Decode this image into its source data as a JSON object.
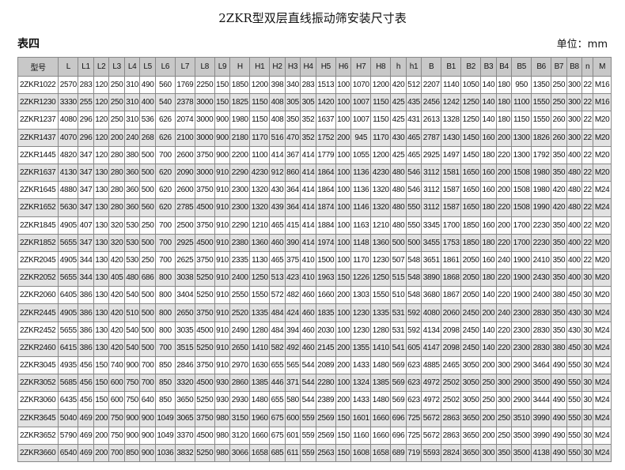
{
  "header": {
    "title": "2ZKR型双层直线振动筛安装尺寸表",
    "label": "表四",
    "unit": "单位：mm"
  },
  "table": {
    "columns": [
      "型号",
      "L",
      "L1",
      "L2",
      "L3",
      "L4",
      "L5",
      "L6",
      "L7",
      "L8",
      "L9",
      "H",
      "H1",
      "H2",
      "H3",
      "H4",
      "H5",
      "H6",
      "H7",
      "H8",
      "h",
      "h1",
      "B",
      "B1",
      "B2",
      "B3",
      "B4",
      "B5",
      "B6",
      "B7",
      "B8",
      "n",
      "M"
    ],
    "rows": [
      [
        "2ZKR1022",
        "2570",
        "283",
        "120",
        "250",
        "310",
        "490",
        "560",
        "1769",
        "2250",
        "150",
        "1850",
        "1200",
        "398",
        "340",
        "283",
        "1513",
        "100",
        "1070",
        "1200",
        "420",
        "512",
        "2207",
        "1140",
        "1050",
        "140",
        "180",
        "950",
        "1350",
        "250",
        "300",
        "22",
        "M16"
      ],
      [
        "2ZKR1230",
        "3330",
        "255",
        "120",
        "250",
        "310",
        "400",
        "540",
        "2378",
        "3000",
        "150",
        "1825",
        "1150",
        "408",
        "305",
        "305",
        "1420",
        "100",
        "1007",
        "1150",
        "425",
        "435",
        "2456",
        "1242",
        "1250",
        "140",
        "180",
        "1100",
        "1550",
        "250",
        "300",
        "22",
        "M16"
      ],
      [
        "2ZKR1237",
        "4080",
        "296",
        "120",
        "250",
        "310",
        "536",
        "626",
        "2074",
        "3000",
        "900",
        "1980",
        "1150",
        "408",
        "350",
        "352",
        "1637",
        "100",
        "1007",
        "1150",
        "425",
        "431",
        "2613",
        "1328",
        "1250",
        "140",
        "180",
        "1150",
        "1550",
        "260",
        "300",
        "22",
        "M20"
      ],
      [
        "2ZKR1437",
        "4070",
        "296",
        "120",
        "200",
        "240",
        "268",
        "626",
        "2100",
        "3000",
        "900",
        "2180",
        "1170",
        "516",
        "470",
        "352",
        "1752",
        "200",
        "945",
        "1170",
        "430",
        "465",
        "2787",
        "1430",
        "1450",
        "160",
        "200",
        "1300",
        "1826",
        "260",
        "300",
        "22",
        "M20"
      ],
      [
        "2ZKR1445",
        "4820",
        "347",
        "120",
        "280",
        "380",
        "500",
        "700",
        "2600",
        "3750",
        "900",
        "2200",
        "1100",
        "414",
        "367",
        "414",
        "1779",
        "100",
        "1055",
        "1200",
        "425",
        "465",
        "2925",
        "1497",
        "1450",
        "180",
        "220",
        "1300",
        "1792",
        "350",
        "400",
        "22",
        "M20"
      ],
      [
        "2ZKR1637",
        "4130",
        "347",
        "130",
        "280",
        "360",
        "500",
        "620",
        "2090",
        "3000",
        "910",
        "2290",
        "4230",
        "912",
        "860",
        "414",
        "1864",
        "100",
        "1136",
        "4230",
        "480",
        "546",
        "3112",
        "1581",
        "1650",
        "160",
        "200",
        "1508",
        "1980",
        "350",
        "480",
        "22",
        "M20"
      ],
      [
        "2ZKR1645",
        "4880",
        "347",
        "130",
        "280",
        "360",
        "500",
        "620",
        "2600",
        "3750",
        "910",
        "2300",
        "1320",
        "430",
        "364",
        "414",
        "1864",
        "100",
        "1136",
        "1320",
        "480",
        "546",
        "3112",
        "1587",
        "1650",
        "160",
        "200",
        "1508",
        "1980",
        "420",
        "480",
        "22",
        "M24"
      ],
      [
        "2ZKR1652",
        "5630",
        "347",
        "130",
        "280",
        "360",
        "560",
        "620",
        "2785",
        "4500",
        "910",
        "2300",
        "1320",
        "439",
        "364",
        "414",
        "1874",
        "100",
        "1146",
        "1320",
        "480",
        "550",
        "3112",
        "1587",
        "1650",
        "180",
        "220",
        "1508",
        "1990",
        "420",
        "480",
        "22",
        "M24"
      ],
      [
        "2ZKR1845",
        "4905",
        "407",
        "130",
        "320",
        "530",
        "250",
        "700",
        "2500",
        "3750",
        "910",
        "2290",
        "1210",
        "465",
        "415",
        "414",
        "1884",
        "100",
        "1163",
        "1210",
        "480",
        "550",
        "3345",
        "1700",
        "1850",
        "160",
        "200",
        "1700",
        "2230",
        "350",
        "400",
        "22",
        "M20"
      ],
      [
        "2ZKR1852",
        "5655",
        "347",
        "130",
        "320",
        "530",
        "500",
        "700",
        "2925",
        "4500",
        "910",
        "2380",
        "1360",
        "460",
        "390",
        "414",
        "1974",
        "100",
        "1148",
        "1360",
        "500",
        "500",
        "3455",
        "1753",
        "1850",
        "180",
        "220",
        "1700",
        "2230",
        "350",
        "400",
        "22",
        "M20"
      ],
      [
        "2ZKR2045",
        "4905",
        "344",
        "130",
        "420",
        "530",
        "250",
        "700",
        "2625",
        "3750",
        "910",
        "2335",
        "1130",
        "465",
        "375",
        "410",
        "1500",
        "100",
        "1170",
        "1230",
        "507",
        "548",
        "3651",
        "1861",
        "2050",
        "160",
        "240",
        "1900",
        "2410",
        "350",
        "400",
        "22",
        "M20"
      ],
      [
        "2ZKR2052",
        "5655",
        "344",
        "130",
        "405",
        "480",
        "686",
        "800",
        "3038",
        "5250",
        "910",
        "2400",
        "1250",
        "513",
        "423",
        "410",
        "1963",
        "150",
        "1226",
        "1250",
        "515",
        "548",
        "3890",
        "1868",
        "2050",
        "180",
        "220",
        "1900",
        "2430",
        "350",
        "400",
        "30",
        "M20"
      ],
      [
        "2ZKR2060",
        "6405",
        "386",
        "130",
        "420",
        "540",
        "500",
        "800",
        "3404",
        "5250",
        "910",
        "2550",
        "1550",
        "572",
        "482",
        "460",
        "1660",
        "200",
        "1303",
        "1550",
        "510",
        "548",
        "3680",
        "1867",
        "2050",
        "140",
        "220",
        "1900",
        "2400",
        "380",
        "450",
        "30",
        "M20"
      ],
      [
        "2ZKR2445",
        "4905",
        "386",
        "130",
        "420",
        "510",
        "500",
        "800",
        "2650",
        "3750",
        "910",
        "2520",
        "1335",
        "484",
        "424",
        "460",
        "1835",
        "100",
        "1230",
        "1335",
        "531",
        "592",
        "4080",
        "2060",
        "2450",
        "200",
        "240",
        "2300",
        "2830",
        "350",
        "430",
        "30",
        "M24"
      ],
      [
        "2ZKR2452",
        "5655",
        "386",
        "130",
        "420",
        "540",
        "500",
        "800",
        "3035",
        "4500",
        "910",
        "2490",
        "1280",
        "484",
        "394",
        "460",
        "2030",
        "100",
        "1230",
        "1280",
        "531",
        "592",
        "4134",
        "2098",
        "2450",
        "140",
        "220",
        "2300",
        "2830",
        "350",
        "430",
        "30",
        "M24"
      ],
      [
        "2ZKR2460",
        "6415",
        "386",
        "130",
        "420",
        "540",
        "500",
        "700",
        "3515",
        "5250",
        "910",
        "2650",
        "1410",
        "582",
        "492",
        "460",
        "2145",
        "200",
        "1355",
        "1410",
        "541",
        "605",
        "4147",
        "2098",
        "2450",
        "140",
        "220",
        "2300",
        "2830",
        "380",
        "450",
        "30",
        "M24"
      ],
      [
        "2ZKR3045",
        "4935",
        "456",
        "150",
        "740",
        "900",
        "700",
        "850",
        "2846",
        "3750",
        "910",
        "2970",
        "1630",
        "655",
        "565",
        "544",
        "2089",
        "200",
        "1433",
        "1480",
        "569",
        "623",
        "4885",
        "2465",
        "3050",
        "200",
        "300",
        "2900",
        "3464",
        "490",
        "550",
        "30",
        "M24"
      ],
      [
        "2ZKR3052",
        "5685",
        "456",
        "150",
        "600",
        "750",
        "700",
        "850",
        "3320",
        "4500",
        "930",
        "2860",
        "1385",
        "446",
        "371",
        "544",
        "2280",
        "100",
        "1324",
        "1385",
        "569",
        "623",
        "4972",
        "2502",
        "3050",
        "250",
        "300",
        "2900",
        "3500",
        "490",
        "550",
        "30",
        "M24"
      ],
      [
        "2ZKR3060",
        "6435",
        "456",
        "150",
        "600",
        "750",
        "640",
        "850",
        "3650",
        "5250",
        "930",
        "2930",
        "1480",
        "655",
        "580",
        "544",
        "2389",
        "200",
        "1433",
        "1480",
        "569",
        "623",
        "4972",
        "2502",
        "3050",
        "250",
        "300",
        "2900",
        "3444",
        "490",
        "550",
        "30",
        "M24"
      ],
      [
        "2ZKR3645",
        "5040",
        "469",
        "200",
        "750",
        "900",
        "900",
        "1049",
        "3065",
        "3750",
        "980",
        "3150",
        "1960",
        "675",
        "600",
        "559",
        "2569",
        "150",
        "1601",
        "1660",
        "696",
        "725",
        "5672",
        "2863",
        "3650",
        "200",
        "250",
        "3510",
        "3990",
        "490",
        "550",
        "30",
        "M24"
      ],
      [
        "2ZKR3652",
        "5790",
        "469",
        "200",
        "750",
        "900",
        "900",
        "1049",
        "3370",
        "4500",
        "980",
        "3120",
        "1660",
        "675",
        "601",
        "559",
        "2569",
        "150",
        "1160",
        "1660",
        "696",
        "725",
        "5672",
        "2863",
        "3650",
        "200",
        "250",
        "3500",
        "3990",
        "490",
        "550",
        "30",
        "M24"
      ],
      [
        "2ZKR3660",
        "6540",
        "469",
        "200",
        "700",
        "850",
        "900",
        "1036",
        "3832",
        "5250",
        "980",
        "3066",
        "1658",
        "685",
        "611",
        "559",
        "2563",
        "150",
        "1608",
        "1658",
        "689",
        "719",
        "5593",
        "2824",
        "3650",
        "300",
        "350",
        "3500",
        "4138",
        "490",
        "550",
        "30",
        "M24"
      ]
    ]
  }
}
